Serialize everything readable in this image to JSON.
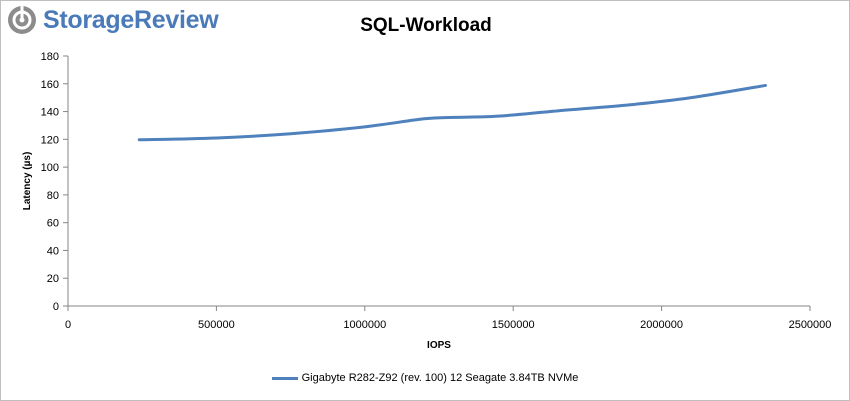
{
  "brand": {
    "name": "StorageReview",
    "color": "#4a7ab8",
    "icon": "storage-review-logo-icon"
  },
  "colors": {
    "series": "#4f81bd",
    "axis": "#868686",
    "logo_gray": "#8c8c8c"
  },
  "chart_data": {
    "type": "line",
    "title": "SQL-Workload",
    "xlabel": "IOPS",
    "ylabel": "Latency (µs)",
    "xlim": [
      0,
      2500000
    ],
    "ylim": [
      0,
      180
    ],
    "xticks": [
      "0",
      "500000",
      "1000000",
      "1500000",
      "2000000",
      "2500000"
    ],
    "yticks": [
      "0",
      "20",
      "40",
      "60",
      "80",
      "100",
      "120",
      "140",
      "160",
      "180"
    ],
    "xtick_values": [
      0,
      500000,
      1000000,
      1500000,
      2000000,
      2500000
    ],
    "ytick_values": [
      0,
      20,
      40,
      60,
      80,
      100,
      120,
      140,
      160,
      180
    ],
    "grid": false,
    "legend_position": "bottom",
    "series": [
      {
        "name": "Gigabyte R282-Z92 (rev. 100) 12 Seagate 3.84TB NVMe",
        "x": [
          240000,
          500000,
          750000,
          1000000,
          1200000,
          1300000,
          1450000,
          1650000,
          1900000,
          2100000,
          2350000
        ],
        "y": [
          119.7,
          121,
          124,
          129,
          134.8,
          135.8,
          136.7,
          140.5,
          145,
          150,
          158.8
        ]
      }
    ]
  }
}
